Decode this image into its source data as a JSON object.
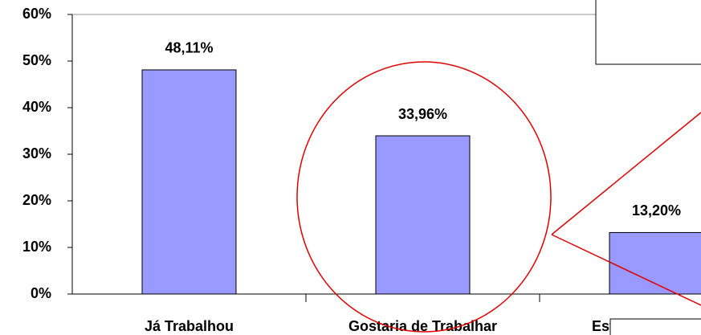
{
  "chart_data": {
    "type": "bar",
    "categories": [
      "Já Trabalhou",
      "Gostaria de Trabalhar",
      "Estão Trabalhando"
    ],
    "values": [
      48.11,
      33.96,
      13.2
    ],
    "value_labels": [
      "48,11%",
      "33,96%",
      "13,20%"
    ],
    "color": "#9999ff",
    "ylim": [
      0,
      60
    ],
    "yticks": [
      {
        "value": 0,
        "label": "0%"
      },
      {
        "value": 10,
        "label": "10%"
      },
      {
        "value": 20,
        "label": "20%"
      },
      {
        "value": 30,
        "label": "30%"
      },
      {
        "value": 40,
        "label": "40%"
      },
      {
        "value": 50,
        "label": "50%"
      },
      {
        "value": 60,
        "label": "60%"
      }
    ]
  }
}
